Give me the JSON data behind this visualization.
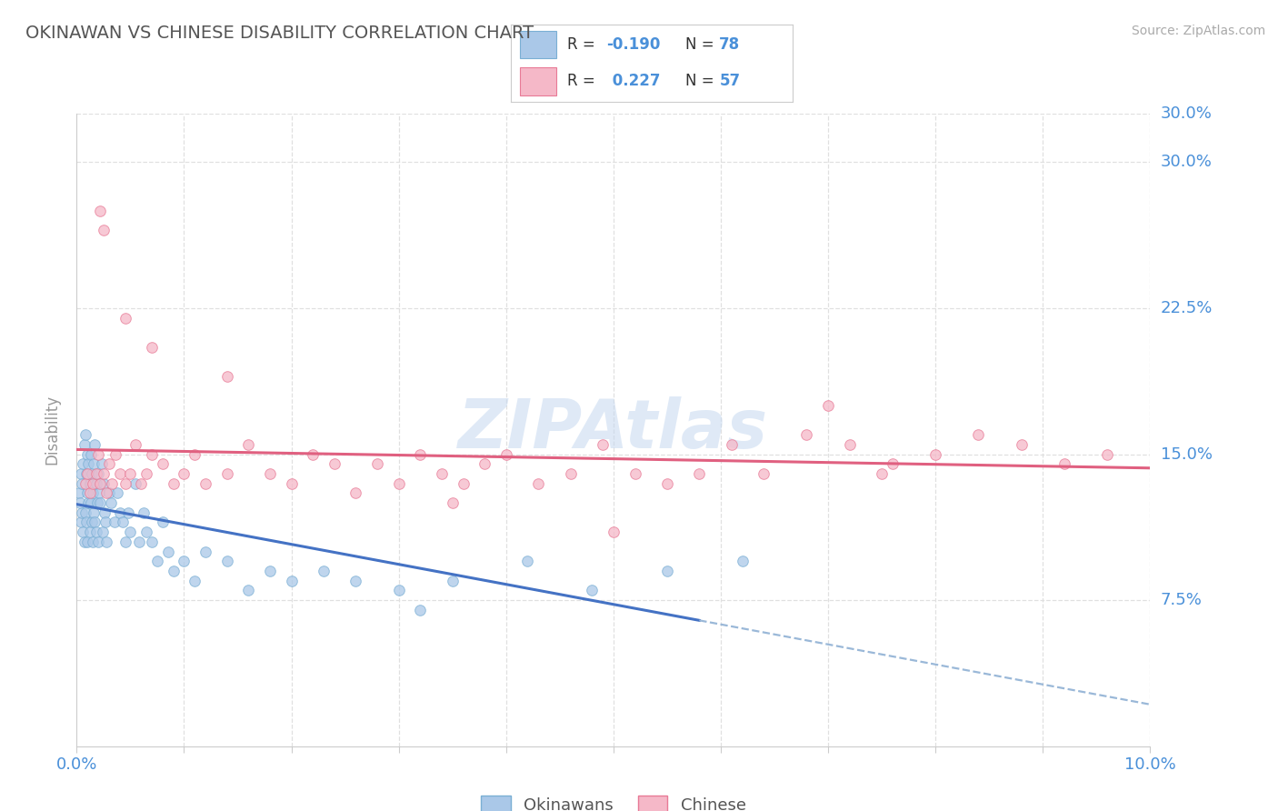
{
  "title": "OKINAWAN VS CHINESE DISABILITY CORRELATION CHART",
  "source": "Source: ZipAtlas.com",
  "ylabel": "Disability",
  "xlim": [
    0.0,
    10.0
  ],
  "ylim": [
    0.0,
    32.5
  ],
  "yticks": [
    7.5,
    15.0,
    22.5,
    30.0
  ],
  "xticks": [
    0.0,
    1.0,
    2.0,
    3.0,
    4.0,
    5.0,
    6.0,
    7.0,
    8.0,
    9.0,
    10.0
  ],
  "okinawan_color": "#aac8e8",
  "okinawan_edge": "#7aafd4",
  "chinese_color": "#f5b8c8",
  "chinese_edge": "#e87a96",
  "trend_okinawan": "#4472C4",
  "trend_chinese": "#e06080",
  "dashed_color": "#9ab8d8",
  "legend_R_okinawan": "-0.190",
  "legend_N_okinawan": "78",
  "legend_R_chinese": "0.227",
  "legend_N_chinese": "57",
  "legend_label_okinawan": "Okinawans",
  "legend_label_chinese": "Chinese",
  "watermark": "ZIPAtlas",
  "background_color": "#ffffff",
  "grid_color": "#e0e0e0",
  "axis_color": "#cccccc",
  "title_color": "#555555",
  "label_color": "#4a90d9",
  "okinawan_x": [
    0.02,
    0.03,
    0.04,
    0.04,
    0.05,
    0.05,
    0.06,
    0.06,
    0.07,
    0.07,
    0.08,
    0.08,
    0.09,
    0.09,
    0.1,
    0.1,
    0.1,
    0.11,
    0.11,
    0.12,
    0.12,
    0.13,
    0.13,
    0.14,
    0.14,
    0.15,
    0.15,
    0.16,
    0.16,
    0.17,
    0.17,
    0.18,
    0.18,
    0.19,
    0.2,
    0.2,
    0.21,
    0.22,
    0.23,
    0.24,
    0.25,
    0.26,
    0.27,
    0.28,
    0.3,
    0.32,
    0.35,
    0.38,
    0.4,
    0.43,
    0.45,
    0.48,
    0.5,
    0.55,
    0.58,
    0.62,
    0.65,
    0.7,
    0.75,
    0.8,
    0.85,
    0.9,
    1.0,
    1.1,
    1.2,
    1.4,
    1.6,
    1.8,
    2.0,
    2.3,
    2.6,
    3.0,
    3.5,
    4.2,
    4.8,
    5.5,
    6.2,
    3.2
  ],
  "okinawan_y": [
    13.0,
    12.5,
    14.0,
    11.5,
    13.5,
    12.0,
    14.5,
    11.0,
    15.5,
    10.5,
    16.0,
    12.0,
    14.0,
    11.5,
    15.0,
    13.0,
    10.5,
    14.5,
    12.5,
    13.5,
    11.0,
    15.0,
    12.5,
    14.0,
    11.5,
    13.0,
    10.5,
    14.5,
    12.0,
    15.5,
    11.5,
    13.5,
    11.0,
    12.5,
    14.0,
    10.5,
    13.0,
    12.5,
    14.5,
    11.0,
    13.5,
    12.0,
    11.5,
    10.5,
    13.0,
    12.5,
    11.5,
    13.0,
    12.0,
    11.5,
    10.5,
    12.0,
    11.0,
    13.5,
    10.5,
    12.0,
    11.0,
    10.5,
    9.5,
    11.5,
    10.0,
    9.0,
    9.5,
    8.5,
    10.0,
    9.5,
    8.0,
    9.0,
    8.5,
    9.0,
    8.5,
    8.0,
    8.5,
    9.5,
    8.0,
    9.0,
    9.5,
    7.0
  ],
  "chinese_x": [
    0.08,
    0.1,
    0.12,
    0.15,
    0.18,
    0.2,
    0.22,
    0.25,
    0.28,
    0.3,
    0.33,
    0.36,
    0.4,
    0.45,
    0.5,
    0.55,
    0.6,
    0.65,
    0.7,
    0.8,
    0.9,
    1.0,
    1.1,
    1.2,
    1.4,
    1.6,
    1.8,
    2.0,
    2.2,
    2.4,
    2.6,
    2.8,
    3.0,
    3.2,
    3.4,
    3.6,
    3.8,
    4.0,
    4.3,
    4.6,
    4.9,
    5.2,
    5.5,
    5.8,
    6.1,
    6.4,
    6.8,
    7.2,
    7.6,
    8.0,
    8.4,
    8.8,
    9.2,
    9.6,
    3.5,
    5.0,
    7.0
  ],
  "chinese_y": [
    13.5,
    14.0,
    13.0,
    13.5,
    14.0,
    15.0,
    13.5,
    14.0,
    13.0,
    14.5,
    13.5,
    15.0,
    14.0,
    13.5,
    14.0,
    15.5,
    13.5,
    14.0,
    15.0,
    14.5,
    13.5,
    14.0,
    15.0,
    13.5,
    14.0,
    15.5,
    14.0,
    13.5,
    15.0,
    14.5,
    13.0,
    14.5,
    13.5,
    15.0,
    14.0,
    13.5,
    14.5,
    15.0,
    13.5,
    14.0,
    15.5,
    14.0,
    13.5,
    14.0,
    15.5,
    14.0,
    16.0,
    15.5,
    14.5,
    15.0,
    16.0,
    15.5,
    14.5,
    15.0,
    12.5,
    11.0,
    17.5
  ],
  "chinese_outliers_x": [
    0.22,
    0.25,
    0.45,
    0.7,
    1.4,
    7.5
  ],
  "chinese_outliers_y": [
    27.5,
    26.5,
    22.0,
    20.5,
    19.0,
    14.0
  ]
}
